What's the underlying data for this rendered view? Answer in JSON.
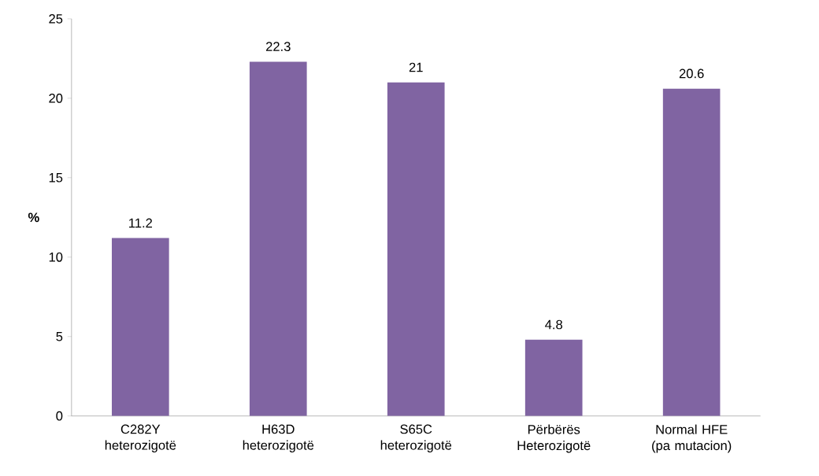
{
  "chart_data": {
    "type": "bar",
    "ylabel": "%",
    "categories": [
      "C282Y heterozigotë",
      "H63D heterozigotë",
      "S65C heterozigotë",
      "Përbërës Heterozigotë",
      "Normal HFE (pa mutacion)"
    ],
    "values": [
      11.2,
      22.3,
      21,
      4.8,
      20.6
    ],
    "color": "#8064a2",
    "ylim": [
      0,
      25
    ],
    "yticks": [
      0,
      5,
      10,
      15,
      20,
      25
    ],
    "data_labels": true
  }
}
